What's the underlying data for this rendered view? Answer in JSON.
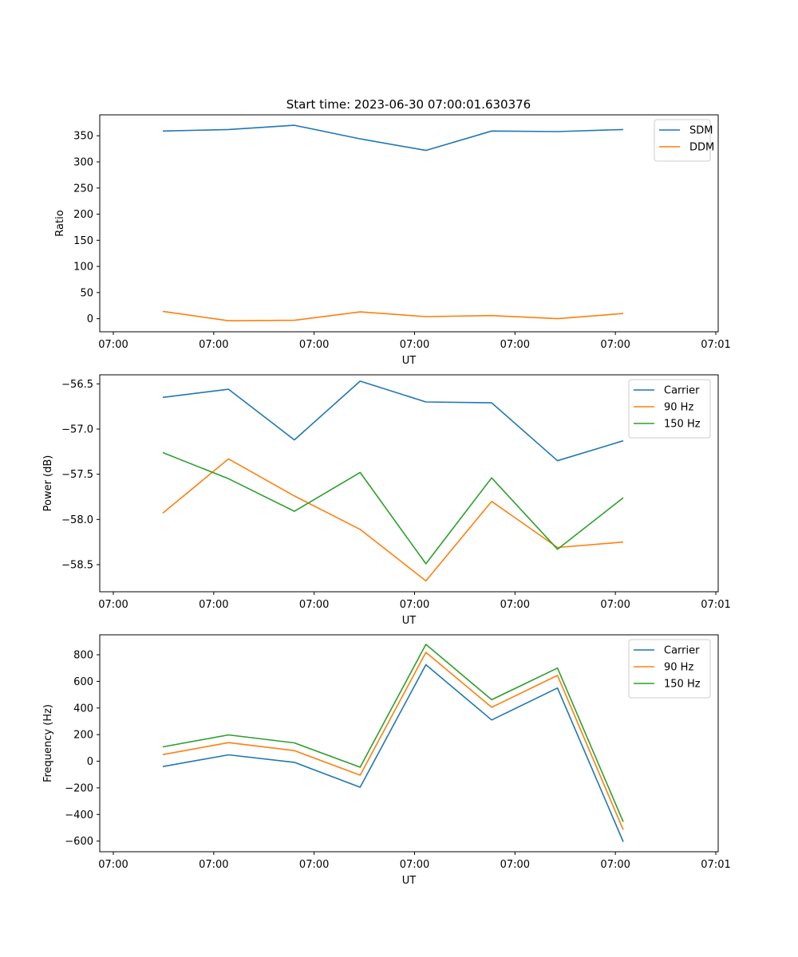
{
  "title": "Start time: 2023-06-30 07:00:01.630376",
  "chart_data": [
    {
      "type": "line",
      "ylabel": "Ratio",
      "xlabel": "UT",
      "xticks": [
        "07:00",
        "07:00",
        "07:00",
        "07:00",
        "07:00",
        "07:00",
        "07:01"
      ],
      "ylim": [
        -25,
        390
      ],
      "yticks": [
        0,
        50,
        100,
        150,
        200,
        250,
        300,
        350
      ],
      "legend": "top-right",
      "series": [
        {
          "name": "SDM",
          "color": "#1f77b4",
          "values": [
            359,
            362,
            370,
            344,
            322,
            359,
            358,
            362
          ]
        },
        {
          "name": "DDM",
          "color": "#ff7f0e",
          "values": [
            14,
            -4,
            -3,
            13,
            4,
            6,
            0,
            10
          ]
        }
      ]
    },
    {
      "type": "line",
      "ylabel": "Power (dB)",
      "xlabel": "UT",
      "xticks": [
        "07:00",
        "07:00",
        "07:00",
        "07:00",
        "07:00",
        "07:00",
        "07:01"
      ],
      "ylim": [
        -58.8,
        -56.4
      ],
      "yticks": [
        -58.5,
        -58.0,
        -57.5,
        -57.0,
        -56.5
      ],
      "tick_format": "fixed1",
      "legend": "top-right",
      "series": [
        {
          "name": "Carrier",
          "color": "#1f77b4",
          "values": [
            -56.65,
            -56.56,
            -57.12,
            -56.47,
            -56.7,
            -56.71,
            -57.35,
            -57.13
          ]
        },
        {
          "name": "90 Hz",
          "color": "#ff7f0e",
          "values": [
            -57.93,
            -57.33,
            -57.74,
            -58.11,
            -58.68,
            -57.8,
            -58.31,
            -58.25
          ]
        },
        {
          "name": "150 Hz",
          "color": "#2ca02c",
          "values": [
            -57.26,
            -57.55,
            -57.91,
            -57.48,
            -58.49,
            -57.54,
            -58.33,
            -57.76
          ]
        }
      ]
    },
    {
      "type": "line",
      "ylabel": "Frequency (Hz)",
      "xlabel": "UT",
      "xticks": [
        "07:00",
        "07:00",
        "07:00",
        "07:00",
        "07:00",
        "07:00",
        "07:01"
      ],
      "ylim": [
        -680,
        950
      ],
      "yticks": [
        -600,
        -400,
        -200,
        0,
        200,
        400,
        600,
        800
      ],
      "tick_format": "unicode_minus",
      "legend": "top-right",
      "series": [
        {
          "name": "Carrier",
          "color": "#1f77b4",
          "values": [
            -40,
            48,
            -8,
            -195,
            725,
            310,
            550,
            -605
          ]
        },
        {
          "name": "90 Hz",
          "color": "#ff7f0e",
          "values": [
            50,
            140,
            80,
            -105,
            818,
            405,
            645,
            -515
          ]
        },
        {
          "name": "150 Hz",
          "color": "#2ca02c",
          "values": [
            108,
            198,
            138,
            -45,
            878,
            462,
            700,
            -455
          ]
        }
      ]
    }
  ]
}
